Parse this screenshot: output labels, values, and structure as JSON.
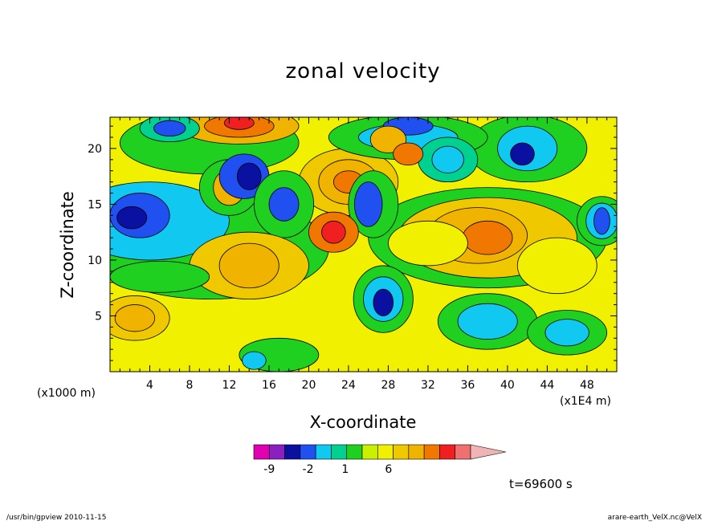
{
  "chart_data": {
    "type": "heatmap",
    "title": "zonal velocity",
    "xlabel": "X-coordinate",
    "ylabel": "Z-coordinate",
    "x_unit": "(x1E4 m)",
    "y_unit": "(x1000 m)",
    "xlim": [
      0,
      51
    ],
    "ylim": [
      0,
      22.8
    ],
    "x_ticks": [
      4,
      8,
      12,
      16,
      20,
      24,
      28,
      32,
      36,
      40,
      44,
      48
    ],
    "y_ticks": [
      5,
      10,
      15,
      20
    ],
    "colorbar": {
      "colors": [
        "#e000b0",
        "#8a20c0",
        "#0a10a0",
        "#2050f0",
        "#10c8f0",
        "#00d090",
        "#20d020",
        "#c8f000",
        "#f0f000",
        "#f0c800",
        "#f0b400",
        "#f07800",
        "#f02020",
        "#f07070",
        "#f0b4b4"
      ],
      "labels": [
        {
          "text": "-9",
          "index": 1
        },
        {
          "text": "-2",
          "index": 3.5
        },
        {
          "text": "1",
          "index": 5.9
        },
        {
          "text": "6",
          "index": 8.7
        }
      ]
    },
    "annotation": "t=69600 s"
  },
  "footer": {
    "left": "/usr/bin/gpview   2010-11-15",
    "right": "arare-earth_VelX.nc@VelX"
  }
}
